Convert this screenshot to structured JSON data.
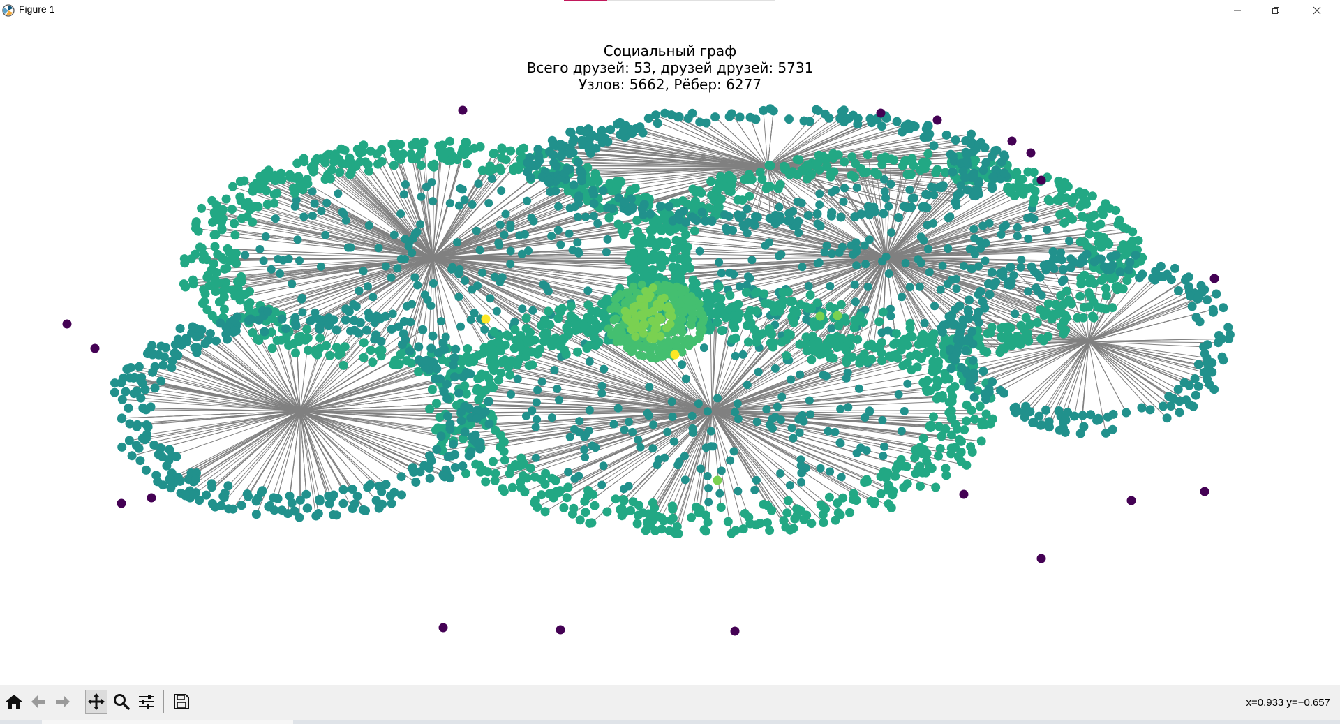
{
  "window": {
    "title": "Figure 1",
    "icons": [
      "matplotlib-icon",
      "minimize-icon",
      "maximize-icon",
      "close-icon"
    ]
  },
  "plot": {
    "title_lines": [
      "Социальный граф",
      "Всего друзей: 53, друзей друзей: 5731",
      "Узлов: 5662, Рёбер: 6277"
    ]
  },
  "chart_data": {
    "type": "scatter",
    "title": "Социальный граф\nВсего друзей: 53, друзей друзей: 5731\nУзлов: 5662, Рёбер: 6277",
    "xlabel": "",
    "ylabel": "",
    "axes_visible": false,
    "grid": false,
    "legend": "none",
    "node_count": 5662,
    "edge_count": 6277,
    "colors": {
      "edge": "#808080",
      "isolated": "#440154",
      "degree_1": "#21918c",
      "degree_2": "#22a884",
      "hub_mid": "#44bf70",
      "hub_high": "#7ad151",
      "hub_top": "#fde725"
    }
  },
  "toolbar": {
    "buttons": [
      {
        "name": "home-button",
        "icon": "home-icon"
      },
      {
        "name": "back-button",
        "icon": "arrow-left-icon"
      },
      {
        "name": "forward-button",
        "icon": "arrow-right-icon"
      },
      {
        "name": "pan-button",
        "icon": "move-icon"
      },
      {
        "name": "zoom-button",
        "icon": "magnifier-icon"
      },
      {
        "name": "configure-subplots-button",
        "icon": "sliders-icon"
      },
      {
        "name": "save-button",
        "icon": "floppy-disk-icon"
      }
    ],
    "coords": "x=0.933 y=−0.657"
  }
}
